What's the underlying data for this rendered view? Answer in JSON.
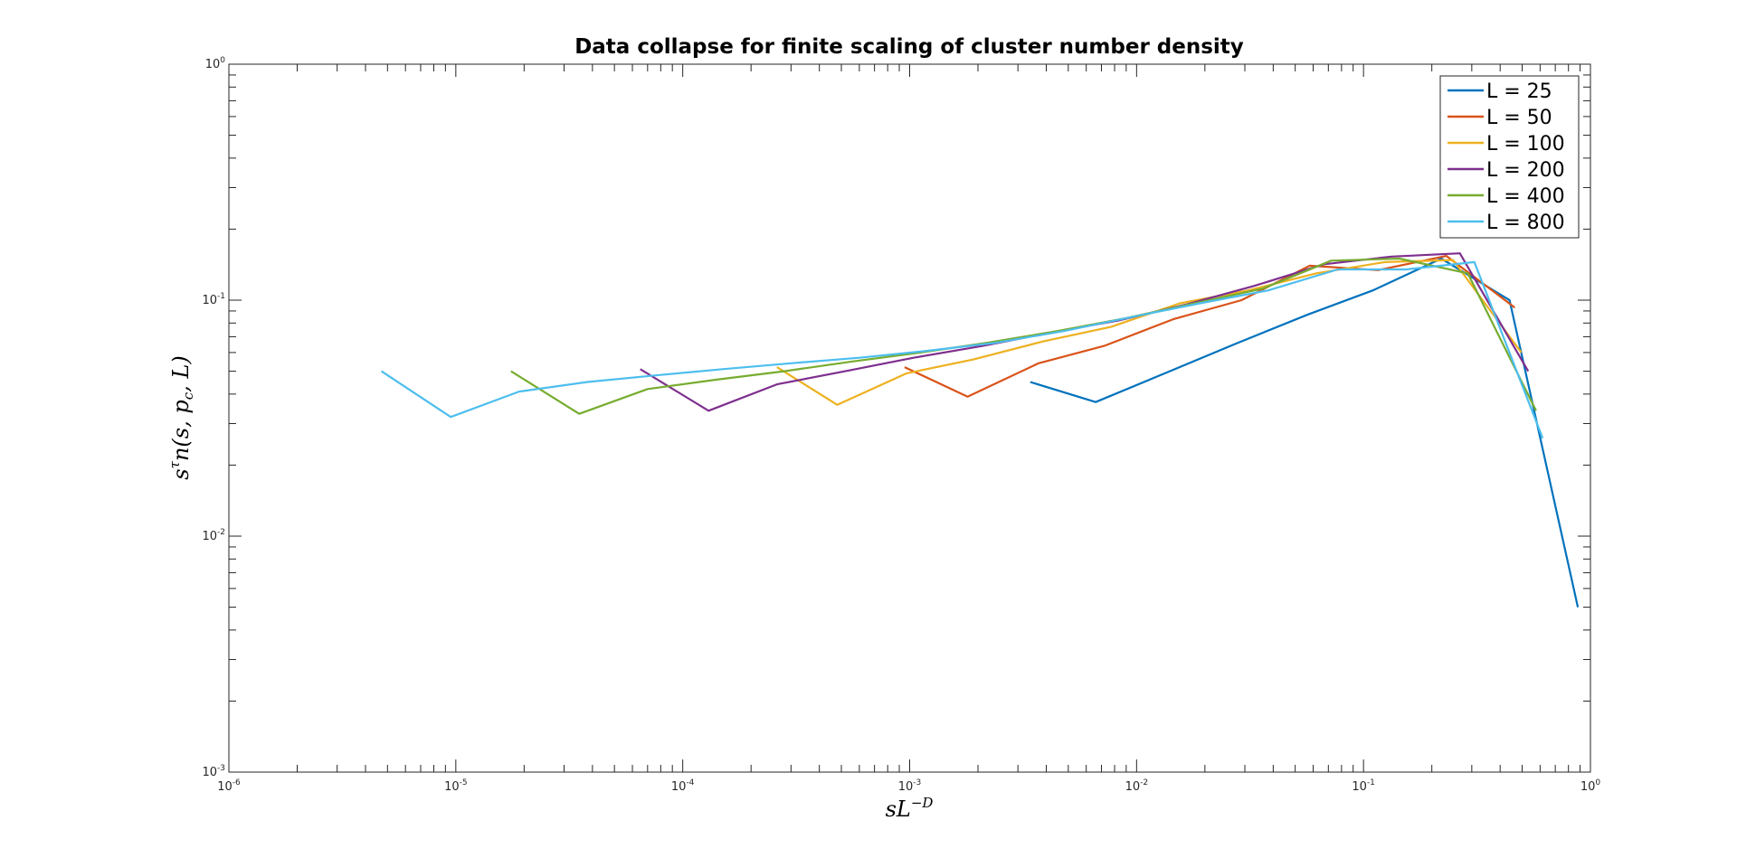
{
  "chart_data": {
    "type": "line",
    "title": "Data collapse for finite scaling of cluster number density",
    "xlabel": {
      "base": "sL",
      "sup": "−D"
    },
    "ylabel": {
      "main": "s",
      "sup": "τ",
      "rest": "n(s, p",
      "sub": "c",
      "tail": ", L)"
    },
    "xscale": "log",
    "yscale": "log",
    "xlim": [
      1e-06,
      1
    ],
    "ylim": [
      0.001,
      1
    ],
    "xticks": [
      {
        "value": 1e-06,
        "base": "10",
        "exp": "-6"
      },
      {
        "value": 1e-05,
        "base": "10",
        "exp": "-5"
      },
      {
        "value": 0.0001,
        "base": "10",
        "exp": "-4"
      },
      {
        "value": 0.001,
        "base": "10",
        "exp": "-3"
      },
      {
        "value": 0.01,
        "base": "10",
        "exp": "-2"
      },
      {
        "value": 0.1,
        "base": "10",
        "exp": "-1"
      },
      {
        "value": 1,
        "base": "10",
        "exp": "0"
      }
    ],
    "yticks": [
      {
        "value": 0.001,
        "base": "10",
        "exp": "-3"
      },
      {
        "value": 0.01,
        "base": "10",
        "exp": "-2"
      },
      {
        "value": 0.1,
        "base": "10",
        "exp": "-1"
      },
      {
        "value": 1,
        "base": "10",
        "exp": "0"
      }
    ],
    "grid": false,
    "legend_position": "top-right",
    "series": [
      {
        "name": "L = 25",
        "color": "#0072BD",
        "x": [
          0.0034,
          0.0066,
          0.014,
          0.028,
          0.057,
          0.11,
          0.22,
          0.44,
          0.88
        ],
        "y": [
          0.045,
          0.037,
          0.05,
          0.066,
          0.087,
          0.11,
          0.15,
          0.1,
          0.005
        ]
      },
      {
        "name": "L = 50",
        "color": "#D95319",
        "x": [
          0.00095,
          0.0018,
          0.0037,
          0.0072,
          0.0145,
          0.029,
          0.058,
          0.116,
          0.232,
          0.464
        ],
        "y": [
          0.052,
          0.039,
          0.054,
          0.064,
          0.083,
          0.1,
          0.14,
          0.134,
          0.154,
          0.093
        ]
      },
      {
        "name": "L = 100",
        "color": "#EDB120",
        "x": [
          0.00026,
          0.00048,
          0.00097,
          0.0019,
          0.0039,
          0.0077,
          0.0155,
          0.031,
          0.062,
          0.124,
          0.248,
          0.496
        ],
        "y": [
          0.052,
          0.036,
          0.049,
          0.056,
          0.067,
          0.077,
          0.097,
          0.11,
          0.13,
          0.145,
          0.148,
          0.06
        ]
      },
      {
        "name": "L = 200",
        "color": "#7E2F8E",
        "x": [
          6.5e-05,
          0.00013,
          0.00026,
          0.00052,
          0.00104,
          0.0021,
          0.0042,
          0.0083,
          0.0167,
          0.033,
          0.067,
          0.133,
          0.266,
          0.532
        ],
        "y": [
          0.051,
          0.034,
          0.044,
          0.05,
          0.057,
          0.064,
          0.073,
          0.082,
          0.096,
          0.115,
          0.142,
          0.153,
          0.158,
          0.05
        ]
      },
      {
        "name": "L = 400",
        "color": "#77AC30",
        "x": [
          1.75e-05,
          3.5e-05,
          7e-05,
          0.00014,
          0.00028,
          0.00056,
          0.00112,
          0.0022,
          0.0045,
          0.009,
          0.018,
          0.036,
          0.072,
          0.144,
          0.288,
          0.576
        ],
        "y": [
          0.05,
          0.033,
          0.042,
          0.046,
          0.05,
          0.055,
          0.06,
          0.066,
          0.074,
          0.084,
          0.097,
          0.112,
          0.147,
          0.15,
          0.13,
          0.034
        ]
      },
      {
        "name": "L = 800",
        "color": "#4DBEEE",
        "x": [
          4.7e-06,
          9.5e-06,
          1.9e-05,
          3.8e-05,
          7.6e-05,
          0.00015,
          0.0003,
          0.0006,
          0.0012,
          0.0024,
          0.0048,
          0.0096,
          0.019,
          0.038,
          0.077,
          0.154,
          0.308,
          0.616
        ],
        "y": [
          0.05,
          0.032,
          0.041,
          0.045,
          0.048,
          0.051,
          0.054,
          0.057,
          0.061,
          0.066,
          0.074,
          0.085,
          0.097,
          0.11,
          0.135,
          0.135,
          0.145,
          0.026
        ]
      }
    ]
  }
}
